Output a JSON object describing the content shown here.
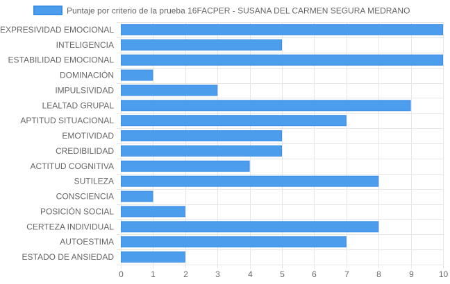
{
  "chart_data": {
    "type": "bar",
    "orientation": "horizontal",
    "categories": [
      "EXPRESIVIDAD EMOCIONAL",
      "INTELIGENCIA",
      "ESTABILIDAD EMOCIONAL",
      "DOMINACIÓN",
      "IMPULSIVIDAD",
      "LEALTAD GRUPAL",
      "APTITUD SITUACIONAL",
      "EMOTIVIDAD",
      "CREDIBILIDAD",
      "ACTITUD COGNITIVA",
      "SUTILEZA",
      "CONSCIENCIA",
      "POSICIÓN SOCIAL",
      "CERTEZA INDIVIDUAL",
      "AUTOESTIMA",
      "ESTADO DE ANSIEDAD"
    ],
    "series": [
      {
        "name": "Puntaje por criterio de la prueba 16FACPER - SUSANA DEL CARMEN SEGURA MEDRANO",
        "values": [
          10,
          5,
          10,
          1,
          3,
          9,
          7,
          5,
          5,
          4,
          8,
          1,
          2,
          8,
          7,
          2
        ],
        "color": "#4d9ded",
        "border_color": "#3a8ee6"
      }
    ],
    "x_ticks": [
      "0",
      "1",
      "2",
      "3",
      "4",
      "5",
      "6",
      "7",
      "8",
      "9",
      "10"
    ],
    "xlim": [
      0,
      10
    ],
    "grid": true,
    "grid_color": "#e6e6e6",
    "legend_position": "top",
    "title": "",
    "xlabel": "",
    "ylabel": ""
  }
}
